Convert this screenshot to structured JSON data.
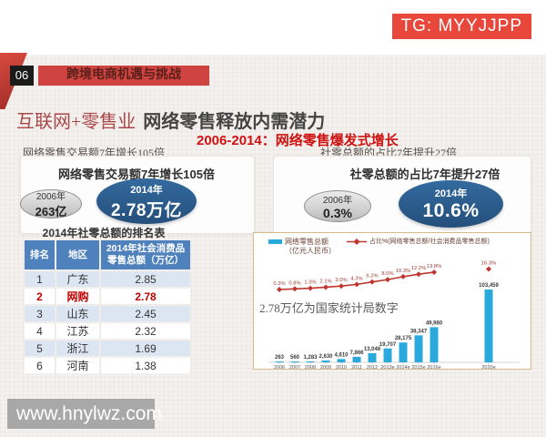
{
  "badge": {
    "label": "TG: MYYJJPP"
  },
  "header": {
    "page_number": "06",
    "band_title": "跨境电商机遇与挑战"
  },
  "title": {
    "prefix": "互联网+零售业",
    "main": "网络零售释放内需潜力",
    "subtitle": "2006-2014：网络零售爆发式增长"
  },
  "left_section": {
    "heading": "网络零售交易额7年增长105倍",
    "panel_heading": "网络零售交易额7年增长105倍",
    "oval_before": {
      "year": "2006年",
      "value": "263亿"
    },
    "oval_after": {
      "year": "2014年",
      "value": "2.78万亿"
    },
    "table": {
      "title": "2014年社零总额的排名表",
      "headers": [
        "排名",
        "地区",
        "2014年社会消费品零售总额（万亿）"
      ],
      "rows": [
        [
          "1",
          "广东",
          "2.85"
        ],
        [
          "2",
          "网购",
          "2.78"
        ],
        [
          "3",
          "山东",
          "2.45"
        ],
        [
          "4",
          "江苏",
          "2.32"
        ],
        [
          "5",
          "浙江",
          "1.69"
        ],
        [
          "6",
          "河南",
          "1.38"
        ]
      ],
      "highlight_row_index": 1
    }
  },
  "right_section": {
    "heading": "社零总额的占比7年提升27倍",
    "panel_heading": "社零总额的占比7年提升27倍",
    "oval_before": {
      "year": "2006年",
      "value": "0.3%"
    },
    "oval_after": {
      "year": "2014年",
      "value": "10.6%"
    }
  },
  "chart_data": {
    "type": "bar",
    "subtype": "bar+line combo",
    "categories": [
      "2006",
      "2007",
      "2008",
      "2009",
      "2010",
      "2011",
      "2012",
      "2013e",
      "2014e",
      "2015e",
      "2016e",
      "2020e"
    ],
    "series": [
      {
        "name": "网络零售总额",
        "unit": "（亿元人民币）",
        "kind": "bar",
        "color": "#2aa9dc",
        "values": [
          263,
          560,
          1283,
          2630,
          4610,
          7866,
          13046,
          19707,
          28175,
          38347,
          49980,
          103459
        ],
        "labels": [
          "263",
          "560",
          "1,283",
          "2,630",
          "4,610",
          "7,866",
          "13,046",
          "19,707",
          "28,175",
          "38,347",
          "49,980",
          "103,459"
        ]
      },
      {
        "name": "占比%(网络零售总额/社会消费品零售总额)",
        "kind": "line",
        "color": "#be362e",
        "values": [
          0.3,
          0.8,
          1.3,
          2.1,
          3.0,
          4.3,
          6.2,
          8.0,
          10.3,
          12.2,
          13.8,
          16.3
        ],
        "labels": [
          "0.3%",
          "0.8%",
          "1.3%",
          "2.1%",
          "3.0%",
          "4.3%",
          "6.2%",
          "8.0%",
          "10.3%",
          "12.2%",
          "13.8%",
          "16.3%"
        ]
      }
    ],
    "legend_position": "top",
    "grid": false,
    "note": "2.78万亿为国家统计局数字"
  },
  "watermark": {
    "text": "www.hnylwz.com"
  },
  "colors": {
    "badge_red": "#e8473c",
    "band_red": "#cf4440",
    "subtitle_red": "#ce1212",
    "table_header_blue": "#4f81bd",
    "table_alt_row": "#dce6f2",
    "highlight_red": "#c00000",
    "ellipse_blue": "#2b5e8d",
    "bar_cyan": "#2aa9dc",
    "line_red": "#be362e"
  }
}
